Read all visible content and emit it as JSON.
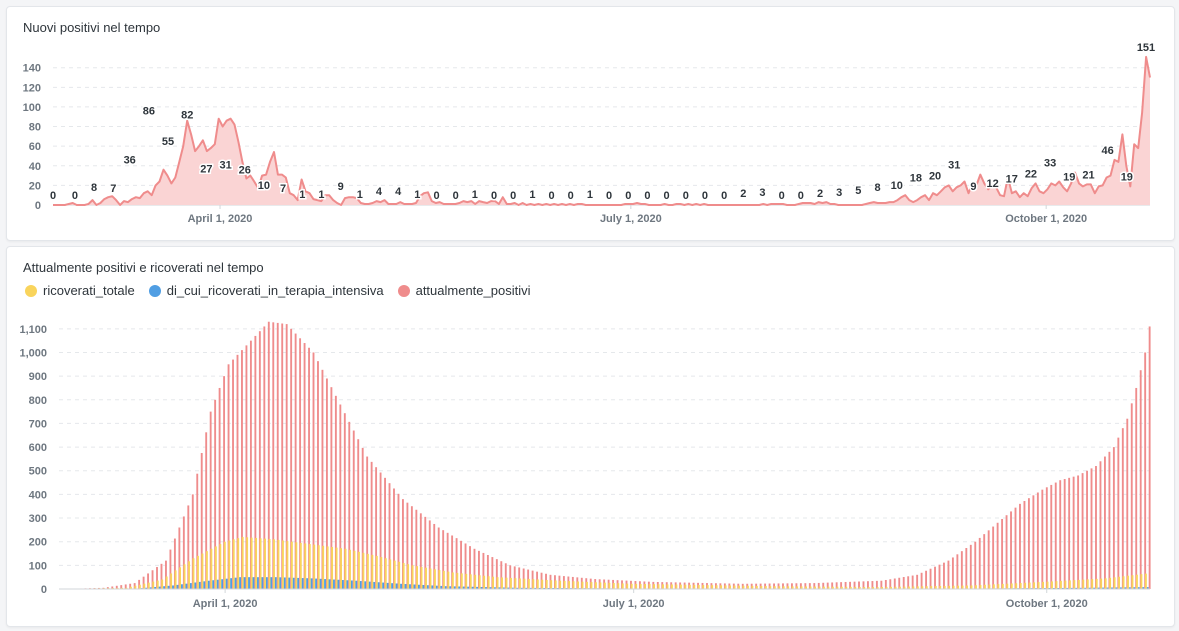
{
  "chart_data": [
    {
      "type": "area",
      "title": "Nuovi positivi nel tempo",
      "color": "#EF8C8C",
      "fill": "#FAD4D4",
      "ylim": [
        0,
        155
      ],
      "yticks": [
        0,
        20,
        40,
        60,
        80,
        100,
        120,
        140
      ],
      "x_range": [
        "2020-02-24",
        "2020-10-24"
      ],
      "xticks": [
        {
          "date": "2020-04-01",
          "label": "April 1, 2020"
        },
        {
          "date": "2020-07-01",
          "label": "July 1, 2020"
        },
        {
          "date": "2020-10-01",
          "label": "October 1, 2020"
        }
      ],
      "grid": true,
      "series": [
        {
          "values": [
            0,
            0,
            0,
            0,
            1,
            2,
            0,
            0,
            0,
            1,
            5,
            0,
            2,
            6,
            8,
            9,
            5,
            0,
            4,
            3,
            6,
            8,
            7,
            12,
            14,
            10,
            20,
            24,
            36,
            30,
            22,
            28,
            44,
            60,
            86,
            72,
            55,
            60,
            66,
            55,
            58,
            62,
            88,
            80,
            86,
            88,
            82,
            64,
            44,
            27,
            30,
            24,
            17,
            30,
            31,
            44,
            54,
            31,
            31,
            28,
            12,
            10,
            5,
            26,
            14,
            12,
            6,
            5,
            4,
            10,
            10,
            5,
            2,
            0,
            7,
            8,
            8,
            7,
            2,
            1,
            1,
            2,
            4,
            3,
            5,
            1,
            1,
            1,
            3,
            1,
            1,
            1,
            2,
            9,
            12,
            13,
            4,
            2,
            3,
            1,
            1,
            1,
            1,
            2,
            4,
            3,
            4,
            1,
            4,
            3,
            2,
            4,
            4,
            1,
            8,
            1,
            1,
            2,
            0,
            2,
            0,
            1,
            0,
            1,
            0,
            1,
            0,
            1,
            0,
            1,
            0,
            1,
            0,
            1,
            1,
            0,
            0,
            0,
            0,
            0,
            0,
            0,
            0,
            0,
            0,
            1,
            1,
            1,
            2,
            1,
            1,
            0,
            0,
            0,
            0,
            1,
            0,
            0,
            1,
            1,
            0,
            1,
            0,
            1,
            0,
            1,
            0,
            0,
            0,
            0,
            0,
            0,
            0,
            0,
            0,
            0,
            0,
            0,
            0,
            0,
            1,
            0,
            1,
            1,
            1,
            1,
            0,
            0,
            0,
            1,
            2,
            2,
            2,
            1,
            3,
            2,
            3,
            1,
            1,
            0,
            0,
            0,
            0,
            0,
            0,
            0,
            1,
            2,
            3,
            2,
            2,
            2,
            3,
            3,
            5,
            8,
            10,
            5,
            3,
            5,
            8,
            10,
            5,
            12,
            10,
            14,
            18,
            20,
            14,
            18,
            20,
            24,
            12,
            22,
            20,
            31,
            22,
            16,
            20,
            18,
            10,
            9,
            28,
            12,
            14,
            8,
            12,
            9,
            17,
            22,
            14,
            12,
            16,
            22,
            20,
            24,
            18,
            14,
            22,
            33,
            22,
            19,
            21,
            21,
            12,
            19,
            20,
            28,
            30,
            46,
            44,
            72,
            40,
            19,
            62,
            58,
            94,
            151,
            130
          ],
          "labels": [
            {
              "x": "2020-02-24",
              "y": 0,
              "text": "0"
            },
            {
              "x": "2020-03-03",
              "y": 0,
              "text": "0"
            },
            {
              "x": "2020-03-10",
              "y": 8,
              "text": "8"
            },
            {
              "x": "2020-03-17",
              "y": 7,
              "text": "7"
            },
            {
              "x": "2020-03-23",
              "y": 36,
              "text": "36"
            },
            {
              "x": "2020-03-30",
              "y": 86,
              "text": "86"
            },
            {
              "x": "2020-04-06",
              "y": 55,
              "text": "55"
            },
            {
              "x": "2020-04-13",
              "y": 82,
              "text": "82"
            },
            {
              "x": "2020-04-20",
              "y": 27,
              "text": "27"
            },
            {
              "x": "2020-04-27",
              "y": 31,
              "text": "31"
            },
            {
              "x": "2020-05-04",
              "y": 26,
              "text": "26"
            },
            {
              "x": "2020-05-11",
              "y": 10,
              "text": "10"
            },
            {
              "x": "2020-05-18",
              "y": 7,
              "text": "7"
            },
            {
              "x": "2020-05-25",
              "y": 1,
              "text": "1"
            },
            {
              "x": "2020-06-01",
              "y": 1,
              "text": "1"
            },
            {
              "x": "2020-06-08",
              "y": 9,
              "text": "9"
            },
            {
              "x": "2020-06-15",
              "y": 1,
              "text": "1"
            },
            {
              "x": "2020-06-22",
              "y": 4,
              "text": "4"
            },
            {
              "x": "2020-06-29",
              "y": 4,
              "text": "4"
            },
            {
              "x": "2020-07-06",
              "y": 1,
              "text": "1"
            },
            {
              "x": "2020-07-13",
              "y": 0,
              "text": "0"
            },
            {
              "x": "2020-07-20",
              "y": 0,
              "text": "0"
            },
            {
              "x": "2020-07-27",
              "y": 1,
              "text": "1"
            },
            {
              "x": "2020-08-03",
              "y": 0,
              "text": "0"
            },
            {
              "x": "2020-08-10",
              "y": 0,
              "text": "0"
            },
            {
              "x": "2020-08-17",
              "y": 1,
              "text": "1"
            },
            {
              "x": "2020-08-24",
              "y": 0,
              "text": "0"
            },
            {
              "x": "2020-08-31",
              "y": 0,
              "text": "0"
            },
            {
              "x": "2020-09-07",
              "y": 1,
              "text": "1"
            },
            {
              "x": "2020-09-14",
              "y": 0,
              "text": "0"
            },
            {
              "x": "2020-09-21",
              "y": 0,
              "text": "0"
            },
            {
              "x": "2020-09-28",
              "y": 0,
              "text": "0"
            },
            {
              "x": "2020-10-05",
              "y": 0,
              "text": "0"
            },
            {
              "x": "2020-10-12",
              "y": 0,
              "text": "0"
            },
            {
              "x": "2020-10-19",
              "y": 0,
              "text": "0"
            },
            {
              "x": "2020-10-26",
              "y": 0,
              "text": "0"
            },
            {
              "x": "2020-11-02",
              "y": 2,
              "text": "2"
            },
            {
              "x": "2020-11-09",
              "y": 3,
              "text": "3"
            },
            {
              "x": "2020-11-16",
              "y": 0,
              "text": "0"
            },
            {
              "x": "2020-11-23",
              "y": 0,
              "text": "0"
            },
            {
              "x": "2020-11-30",
              "y": 2,
              "text": "2"
            },
            {
              "x": "2020-12-07",
              "y": 3,
              "text": "3"
            },
            {
              "x": "2020-12-14",
              "y": 5,
              "text": "5"
            },
            {
              "x": "2020-12-21",
              "y": 8,
              "text": "8"
            },
            {
              "x": "2020-12-28",
              "y": 10,
              "text": "10"
            },
            {
              "x": "2021-01-04",
              "y": 18,
              "text": "18"
            },
            {
              "x": "2021-01-11",
              "y": 20,
              "text": "20"
            },
            {
              "x": "2021-01-18",
              "y": 31,
              "text": "31"
            },
            {
              "x": "2021-01-25",
              "y": 9,
              "text": "9"
            },
            {
              "x": "2021-02-01",
              "y": 12,
              "text": "12"
            },
            {
              "x": "2021-02-08",
              "y": 17,
              "text": "17"
            },
            {
              "x": "2021-02-15",
              "y": 22,
              "text": "22"
            },
            {
              "x": "2021-02-22",
              "y": 33,
              "text": "33"
            },
            {
              "x": "2021-03-01",
              "y": 19,
              "text": "19"
            },
            {
              "x": "2021-03-08",
              "y": 21,
              "text": "21"
            },
            {
              "x": "2021-03-15",
              "y": 46,
              "text": "46"
            },
            {
              "x": "2021-03-22",
              "y": 19,
              "text": "19"
            },
            {
              "x": "2021-03-29",
              "y": 151,
              "text": "151"
            }
          ]
        }
      ]
    },
    {
      "type": "bar",
      "title": "Attualmente positivi e ricoverati nel tempo",
      "ylim": [
        0,
        1150
      ],
      "yticks": [
        0,
        100,
        200,
        300,
        400,
        500,
        600,
        700,
        800,
        900,
        1000,
        1100
      ],
      "ytick_labels": [
        "0",
        "100",
        "200",
        "300",
        "400",
        "500",
        "600",
        "700",
        "800",
        "900",
        "1,000",
        "1,100"
      ],
      "x_range": [
        "2020-02-24",
        "2020-10-24"
      ],
      "xticks": [
        {
          "date": "2020-04-01",
          "label": "April 1, 2020"
        },
        {
          "date": "2020-07-01",
          "label": "July 1, 2020"
        },
        {
          "date": "2020-10-01",
          "label": "October 1, 2020"
        }
      ],
      "legend_position": "top-left",
      "grid": true,
      "series": [
        {
          "name": "ricoverati_totale",
          "color": "#F9D45C"
        },
        {
          "name": "di_cui_ricoverati_in_terapia_intensiva",
          "color": "#509EE3"
        },
        {
          "name": "attualmente_positivi",
          "color": "#EF8C8C"
        }
      ],
      "positivi_keypoints": [
        [
          "2020-02-24",
          0
        ],
        [
          "2020-03-04",
          5
        ],
        [
          "2020-03-11",
          25
        ],
        [
          "2020-03-18",
          120
        ],
        [
          "2020-03-24",
          400
        ],
        [
          "2020-03-28",
          750
        ],
        [
          "2020-04-01",
          950
        ],
        [
          "2020-04-06",
          1050
        ],
        [
          "2020-04-10",
          1130
        ],
        [
          "2020-04-14",
          1120
        ],
        [
          "2020-04-20",
          1000
        ],
        [
          "2020-04-26",
          780
        ],
        [
          "2020-05-02",
          560
        ],
        [
          "2020-05-10",
          380
        ],
        [
          "2020-05-18",
          260
        ],
        [
          "2020-05-26",
          170
        ],
        [
          "2020-06-03",
          100
        ],
        [
          "2020-06-12",
          60
        ],
        [
          "2020-06-22",
          42
        ],
        [
          "2020-07-05",
          30
        ],
        [
          "2020-07-25",
          22
        ],
        [
          "2020-08-10",
          25
        ],
        [
          "2020-08-25",
          35
        ],
        [
          "2020-09-02",
          60
        ],
        [
          "2020-09-09",
          120
        ],
        [
          "2020-09-15",
          200
        ],
        [
          "2020-09-20",
          280
        ],
        [
          "2020-09-25",
          360
        ],
        [
          "2020-09-30",
          420
        ],
        [
          "2020-10-04",
          460
        ],
        [
          "2020-10-08",
          480
        ],
        [
          "2020-10-12",
          520
        ],
        [
          "2020-10-16",
          600
        ],
        [
          "2020-10-19",
          720
        ],
        [
          "2020-10-21",
          850
        ],
        [
          "2020-10-23",
          1000
        ],
        [
          "2020-10-24",
          1110
        ]
      ],
      "ricoverati_keypoints": [
        [
          "2020-02-24",
          0
        ],
        [
          "2020-03-10",
          5
        ],
        [
          "2020-03-18",
          40
        ],
        [
          "2020-03-25",
          130
        ],
        [
          "2020-04-01",
          200
        ],
        [
          "2020-04-05",
          220
        ],
        [
          "2020-04-12",
          210
        ],
        [
          "2020-04-20",
          190
        ],
        [
          "2020-04-28",
          170
        ],
        [
          "2020-05-05",
          140
        ],
        [
          "2020-05-13",
          100
        ],
        [
          "2020-05-22",
          70
        ],
        [
          "2020-06-01",
          50
        ],
        [
          "2020-06-15",
          35
        ],
        [
          "2020-07-01",
          22
        ],
        [
          "2020-08-01",
          12
        ],
        [
          "2020-08-25",
          8
        ],
        [
          "2020-09-15",
          15
        ],
        [
          "2020-10-01",
          30
        ],
        [
          "2020-10-15",
          45
        ],
        [
          "2020-10-24",
          65
        ]
      ],
      "terapia_keypoints": [
        [
          "2020-02-24",
          0
        ],
        [
          "2020-03-12",
          2
        ],
        [
          "2020-03-20",
          15
        ],
        [
          "2020-03-28",
          35
        ],
        [
          "2020-04-04",
          50
        ],
        [
          "2020-04-12",
          50
        ],
        [
          "2020-04-20",
          45
        ],
        [
          "2020-04-30",
          35
        ],
        [
          "2020-05-10",
          22
        ],
        [
          "2020-05-20",
          12
        ],
        [
          "2020-06-05",
          5
        ],
        [
          "2020-07-01",
          2
        ],
        [
          "2020-09-15",
          2
        ],
        [
          "2020-10-10",
          5
        ],
        [
          "2020-10-24",
          8
        ]
      ]
    }
  ]
}
